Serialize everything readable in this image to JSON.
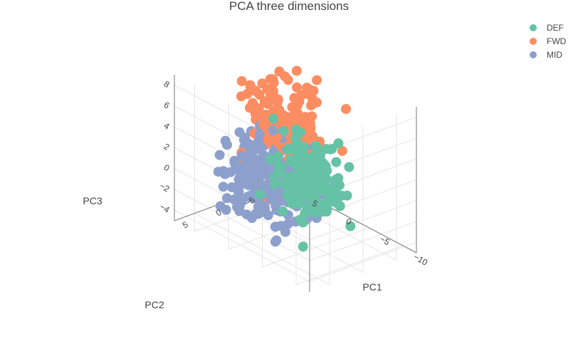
{
  "chart_data": {
    "type": "scatter",
    "title": "PCA three dimensions",
    "axes": {
      "x": {
        "label": "PC1",
        "range": [
          -12,
          8
        ],
        "ticks": [
          -10,
          -5,
          0,
          5
        ]
      },
      "y": {
        "label": "PC2",
        "range": [
          -8,
          8
        ],
        "ticks": [
          -5,
          0,
          5
        ]
      },
      "z": {
        "label": "PC3",
        "range": [
          -5,
          9
        ],
        "ticks": [
          -4,
          -2,
          0,
          2,
          4,
          6,
          8
        ]
      }
    },
    "grid": true,
    "legend_position": "top-right",
    "series": [
      {
        "name": "DEF",
        "color": "#66c2a5",
        "cluster": {
          "center": [
            -5.5,
            1.5,
            2.0
          ],
          "spread": [
            2.2,
            1.6,
            1.8
          ],
          "count": 160
        }
      },
      {
        "name": "FWD",
        "color": "#fc8d62",
        "cluster": {
          "center": [
            3.5,
            -3.5,
            3.0
          ],
          "spread": [
            2.0,
            1.8,
            2.2
          ],
          "count": 180
        }
      },
      {
        "name": "MID",
        "color": "#8da0cb",
        "cluster": {
          "center": [
            1.5,
            0.5,
            -1.0
          ],
          "spread": [
            2.6,
            2.2,
            1.8
          ],
          "count": 260
        }
      }
    ]
  }
}
